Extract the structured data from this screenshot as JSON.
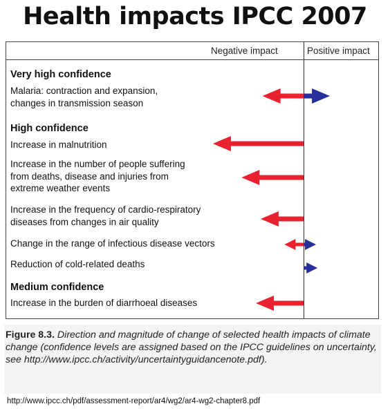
{
  "title": "Health impacts IPCC 2007",
  "header": {
    "negative": "Negative impact",
    "positive": "Positive impact"
  },
  "groups": [
    {
      "heading": "Very high confidence",
      "items": [
        {
          "text": "Malaria: contraction and expansion,\nchanges in transmission season",
          "negative": 0.43,
          "positive": 0.34
        }
      ]
    },
    {
      "heading": "High confidence",
      "items": [
        {
          "text": "Increase in malnutrition",
          "negative": 0.95,
          "positive": 0
        },
        {
          "text": "Increase in the number of people suffering\nfrom deaths, disease and injuries from\nextreme weather events",
          "negative": 0.65,
          "positive": 0
        },
        {
          "text": "Increase in the frequency of cardio-respiratory\ndiseases from changes in air quality",
          "negative": 0.45,
          "positive": 0
        },
        {
          "text": "Change in the range of infectious disease vectors",
          "negative": 0.2,
          "positive": 0.13
        },
        {
          "text": "Reduction of cold-related deaths",
          "negative": 0,
          "positive": 0.18
        }
      ]
    },
    {
      "heading": "Medium confidence",
      "items": [
        {
          "text": "Increase in the burden of diarrhoeal diseases",
          "negative": 0.5,
          "positive": 0
        }
      ]
    }
  ],
  "caption": {
    "label": "Figure 8.3.",
    "text": "Direction and magnitude of change of selected health impacts of climate change (confidence levels are assigned based on the IPCC guidelines on uncertainty, see http://www.ipcc.ch/activity/uncertaintyguidancenote.pdf)."
  },
  "source_url": "http://www.ipcc.ch/pdf/assessment-report/ar4/wg2/ar4-wg2-chapter8.pdf",
  "colors": {
    "negative": "#e8232f",
    "positive": "#27309a"
  }
}
